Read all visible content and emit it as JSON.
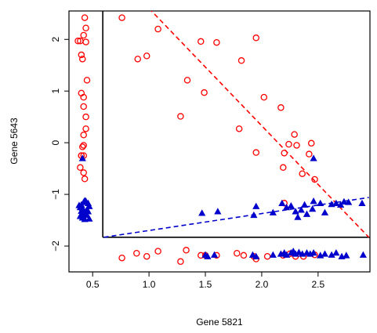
{
  "chart_data": {
    "type": "scatter",
    "title": "",
    "xlabel": "Gene 5821",
    "ylabel": "Gene 5643",
    "xlim": [
      0.29,
      2.96
    ],
    "ylim": [
      -2.5,
      2.55
    ],
    "x_ticks": [
      0.5,
      1.0,
      1.5,
      2.0,
      2.5
    ],
    "x_tick_labels": [
      "0.5",
      "1.0",
      "1.5",
      "2.0",
      "2.5"
    ],
    "y_ticks": [
      -2,
      -1,
      0,
      1,
      2
    ],
    "y_tick_labels": [
      "−2",
      "−1",
      "0",
      "1",
      "2"
    ],
    "grid": false,
    "legend": "none",
    "colors": {
      "circles": "#ff0000",
      "triangles": "#0000cc",
      "frame": "#000000"
    },
    "partition_box": {
      "x_min": 0.59,
      "y_min": -1.83
    },
    "reference_lines": [
      {
        "name": "",
        "color": "#ff0000",
        "style": "dashed",
        "from": [
          1.0,
          2.6
        ],
        "to": [
          2.95,
          -1.83
        ]
      },
      {
        "name": "",
        "color": "#0000cc",
        "style": "dashed",
        "from": [
          0.6,
          -1.83
        ],
        "to": [
          2.95,
          -1.06
        ]
      }
    ],
    "series": [
      {
        "marker": "open-circle",
        "color": "#ff0000",
        "points": [
          [
            0.43,
            2.42
          ],
          [
            0.44,
            2.22
          ],
          [
            0.42,
            2.08
          ],
          [
            0.37,
            1.97
          ],
          [
            0.39,
            1.97
          ],
          [
            0.44,
            1.95
          ],
          [
            0.4,
            1.7
          ],
          [
            0.41,
            1.62
          ],
          [
            0.45,
            1.21
          ],
          [
            0.4,
            0.96
          ],
          [
            0.42,
            0.88
          ],
          [
            0.42,
            0.7
          ],
          [
            0.44,
            0.5
          ],
          [
            0.44,
            0.27
          ],
          [
            0.42,
            0.15
          ],
          [
            0.42,
            -0.05
          ],
          [
            0.41,
            -0.08
          ],
          [
            0.42,
            -0.25
          ],
          [
            0.4,
            -0.25
          ],
          [
            0.4,
            -0.25
          ],
          [
            0.39,
            -0.48
          ],
          [
            0.42,
            -0.58
          ],
          [
            0.43,
            -0.7
          ],
          [
            0.76,
            2.42
          ],
          [
            1.08,
            2.2
          ],
          [
            0.9,
            1.62
          ],
          [
            0.98,
            1.68
          ],
          [
            1.46,
            1.96
          ],
          [
            1.6,
            1.94
          ],
          [
            1.95,
            2.03
          ],
          [
            1.82,
            1.59
          ],
          [
            1.34,
            1.21
          ],
          [
            1.49,
            0.97
          ],
          [
            2.02,
            0.88
          ],
          [
            2.17,
            0.68
          ],
          [
            1.28,
            0.51
          ],
          [
            1.8,
            0.27
          ],
          [
            2.29,
            0.16
          ],
          [
            2.24,
            -0.03
          ],
          [
            2.31,
            -0.05
          ],
          [
            2.44,
            -0.01
          ],
          [
            2.2,
            -0.2
          ],
          [
            2.42,
            -0.22
          ],
          [
            1.95,
            -0.19
          ],
          [
            2.19,
            -0.48
          ],
          [
            2.36,
            -0.6
          ],
          [
            2.47,
            -0.71
          ],
          [
            2.2,
            -1.17
          ],
          [
            0.76,
            -2.23
          ],
          [
            0.89,
            -2.14
          ],
          [
            0.98,
            -2.2
          ],
          [
            1.08,
            -2.1
          ],
          [
            1.33,
            -2.08
          ],
          [
            1.28,
            -2.3
          ],
          [
            1.46,
            -2.18
          ],
          [
            1.5,
            -2.18
          ],
          [
            1.6,
            -2.18
          ],
          [
            1.78,
            -2.14
          ],
          [
            1.84,
            -2.18
          ],
          [
            1.93,
            -2.2
          ],
          [
            1.95,
            -2.25
          ],
          [
            2.05,
            -2.2
          ],
          [
            2.19,
            -2.18
          ],
          [
            2.25,
            -2.15
          ],
          [
            2.3,
            -2.2
          ],
          [
            2.37,
            -2.2
          ],
          [
            2.47,
            -2.17
          ]
        ]
      },
      {
        "marker": "filled-triangle",
        "color": "#0000cc",
        "points": [
          [
            0.41,
            -0.3
          ],
          [
            0.42,
            -1.15
          ],
          [
            0.43,
            -1.12
          ],
          [
            0.44,
            -1.13
          ],
          [
            0.46,
            -1.17
          ],
          [
            0.4,
            -1.2
          ],
          [
            0.38,
            -1.21
          ],
          [
            0.39,
            -1.25
          ],
          [
            0.41,
            -1.26
          ],
          [
            0.45,
            -1.29
          ],
          [
            0.47,
            -1.23
          ],
          [
            0.4,
            -1.32
          ],
          [
            0.42,
            -1.35
          ],
          [
            0.44,
            -1.38
          ],
          [
            0.46,
            -1.33
          ],
          [
            0.39,
            -1.42
          ],
          [
            0.41,
            -1.45
          ],
          [
            0.43,
            -1.48
          ],
          [
            0.45,
            -1.4
          ],
          [
            0.47,
            -1.47
          ],
          [
            1.47,
            -1.36
          ],
          [
            1.61,
            -1.33
          ],
          [
            1.93,
            -1.4
          ],
          [
            1.95,
            -1.23
          ],
          [
            2.1,
            -1.35
          ],
          [
            2.18,
            -1.17
          ],
          [
            2.22,
            -1.25
          ],
          [
            2.26,
            -1.22
          ],
          [
            2.3,
            -1.33
          ],
          [
            2.32,
            -1.44
          ],
          [
            2.35,
            -1.3
          ],
          [
            2.38,
            -1.2
          ],
          [
            2.4,
            -1.38
          ],
          [
            2.45,
            -1.28
          ],
          [
            2.46,
            -1.13
          ],
          [
            2.52,
            -1.17
          ],
          [
            2.56,
            -1.35
          ],
          [
            2.62,
            -1.19
          ],
          [
            2.66,
            -1.17
          ],
          [
            2.7,
            -1.2
          ],
          [
            2.73,
            -1.14
          ],
          [
            2.77,
            -1.15
          ],
          [
            2.89,
            -1.17
          ],
          [
            2.46,
            -0.3
          ],
          [
            1.5,
            -2.17
          ],
          [
            1.52,
            -2.2
          ],
          [
            1.58,
            -2.17
          ],
          [
            1.92,
            -2.17
          ],
          [
            1.95,
            -2.2
          ],
          [
            2.1,
            -2.17
          ],
          [
            2.17,
            -2.15
          ],
          [
            2.2,
            -2.13
          ],
          [
            2.22,
            -2.17
          ],
          [
            2.26,
            -2.13
          ],
          [
            2.28,
            -2.1
          ],
          [
            2.3,
            -2.15
          ],
          [
            2.33,
            -2.12
          ],
          [
            2.36,
            -2.15
          ],
          [
            2.4,
            -2.13
          ],
          [
            2.43,
            -2.15
          ],
          [
            2.46,
            -2.13
          ],
          [
            2.52,
            -2.18
          ],
          [
            2.56,
            -2.15
          ],
          [
            2.62,
            -2.17
          ],
          [
            2.66,
            -2.13
          ],
          [
            2.71,
            -2.2
          ],
          [
            2.75,
            -2.18
          ],
          [
            2.9,
            -2.17
          ]
        ]
      }
    ]
  }
}
